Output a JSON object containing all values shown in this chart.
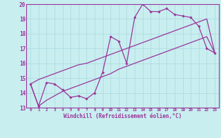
{
  "xlabel": "Windchill (Refroidissement éolien,°C)",
  "bg_color": "#c8eef0",
  "grid_color": "#b0dce0",
  "line_color": "#993399",
  "xlim": [
    -0.5,
    23.5
  ],
  "ylim": [
    13,
    20
  ],
  "yticks": [
    13,
    14,
    15,
    16,
    17,
    18,
    19,
    20
  ],
  "xticks": [
    0,
    1,
    2,
    3,
    4,
    5,
    6,
    7,
    8,
    9,
    10,
    11,
    12,
    13,
    14,
    15,
    16,
    17,
    18,
    19,
    20,
    21,
    22,
    23
  ],
  "hours": [
    0,
    1,
    2,
    3,
    4,
    5,
    6,
    7,
    8,
    9,
    10,
    11,
    12,
    13,
    14,
    15,
    16,
    17,
    18,
    19,
    20,
    21,
    22,
    23
  ],
  "temp_line": [
    14.6,
    13.1,
    14.7,
    14.6,
    14.2,
    13.7,
    13.8,
    13.6,
    14.0,
    15.4,
    17.8,
    17.5,
    16.0,
    19.1,
    20.0,
    19.5,
    19.5,
    19.7,
    19.3,
    19.2,
    19.1,
    18.5,
    17.0,
    16.7
  ],
  "trend_upper": [
    14.6,
    14.9,
    15.1,
    15.3,
    15.5,
    15.7,
    15.9,
    16.0,
    16.2,
    16.4,
    16.6,
    16.8,
    17.0,
    17.2,
    17.4,
    17.6,
    17.8,
    18.0,
    18.2,
    18.4,
    18.6,
    18.8,
    19.0,
    16.7
  ],
  "trend_lower": [
    14.6,
    13.1,
    13.5,
    13.8,
    14.1,
    14.3,
    14.5,
    14.7,
    14.9,
    15.1,
    15.3,
    15.6,
    15.8,
    16.0,
    16.2,
    16.4,
    16.6,
    16.8,
    17.0,
    17.2,
    17.4,
    17.6,
    17.8,
    16.7
  ]
}
